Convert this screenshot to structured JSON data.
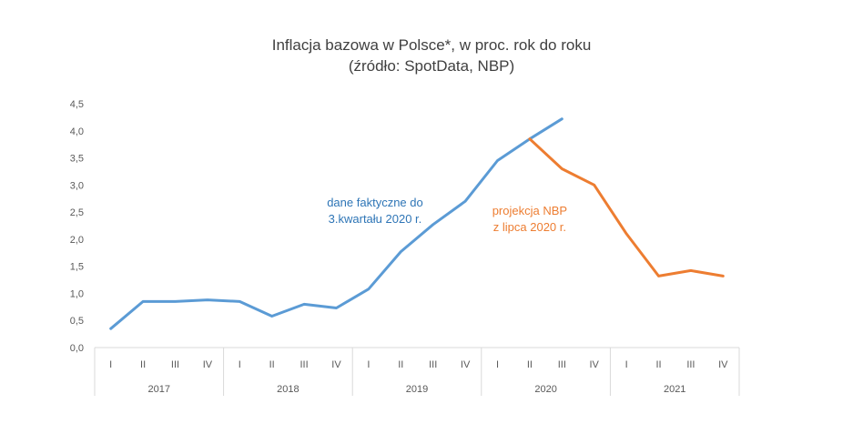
{
  "chart_data": {
    "type": "line",
    "title": "Inflacja bazowa w Polsce*, w proc. rok do roku",
    "subtitle": "(źródło: SpotData, NBP)",
    "categories": [
      "I",
      "II",
      "III",
      "IV",
      "I",
      "II",
      "III",
      "IV",
      "I",
      "II",
      "III",
      "IV",
      "I",
      "II",
      "III",
      "IV",
      "I",
      "II",
      "III",
      "IV"
    ],
    "years": [
      "2017",
      "2018",
      "2019",
      "2020",
      "2021"
    ],
    "ylim": [
      0,
      4.5
    ],
    "yticks": [
      "0,0",
      "0,5",
      "1,0",
      "1,5",
      "2,0",
      "2,5",
      "3,0",
      "3,5",
      "4,0",
      "4,5"
    ],
    "grid": false,
    "series": [
      {
        "color": "#5B9BD5",
        "values": [
          0.35,
          0.85,
          0.85,
          0.88,
          0.85,
          0.58,
          0.8,
          0.73,
          1.08,
          1.77,
          2.27,
          2.7,
          3.45,
          3.85,
          4.22,
          null,
          null,
          null,
          null,
          null
        ]
      },
      {
        "color": "#ED7D31",
        "values": [
          null,
          null,
          null,
          null,
          null,
          null,
          null,
          null,
          null,
          null,
          null,
          null,
          null,
          3.85,
          3.3,
          3.0,
          2.1,
          1.32,
          1.42,
          1.32
        ]
      }
    ],
    "annotations": [
      {
        "lines": [
          "dane faktyczne do",
          "3.kwartału 2020 r."
        ],
        "color": "#2E75B6"
      },
      {
        "lines": [
          "projekcja NBP",
          "z lipca 2020 r."
        ],
        "color": "#ED7D31"
      }
    ]
  }
}
